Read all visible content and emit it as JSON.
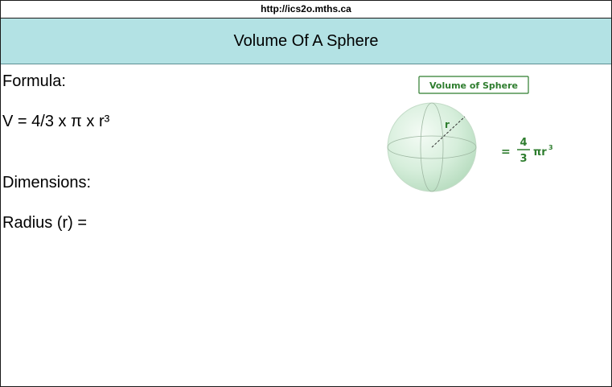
{
  "browser": {
    "url": "http://ics2o.mths.ca"
  },
  "header": {
    "title": "Volume Of A Sphere"
  },
  "content": {
    "formula_heading": "Formula:",
    "formula": "V = 4/3 x π x r³",
    "dimensions_heading": "Dimensions:",
    "radius_label": "Radius (r) ="
  },
  "figure": {
    "label": "Volume of Sphere",
    "radius_symbol": "r",
    "equals": "=",
    "numerator": "4",
    "denominator": "3",
    "pi_r": "πr",
    "exponent": "3"
  },
  "colors": {
    "header_bg": "#b3e2e4",
    "figure_green": "#2e7d2e",
    "sphere_fill": "#d6eedb"
  }
}
